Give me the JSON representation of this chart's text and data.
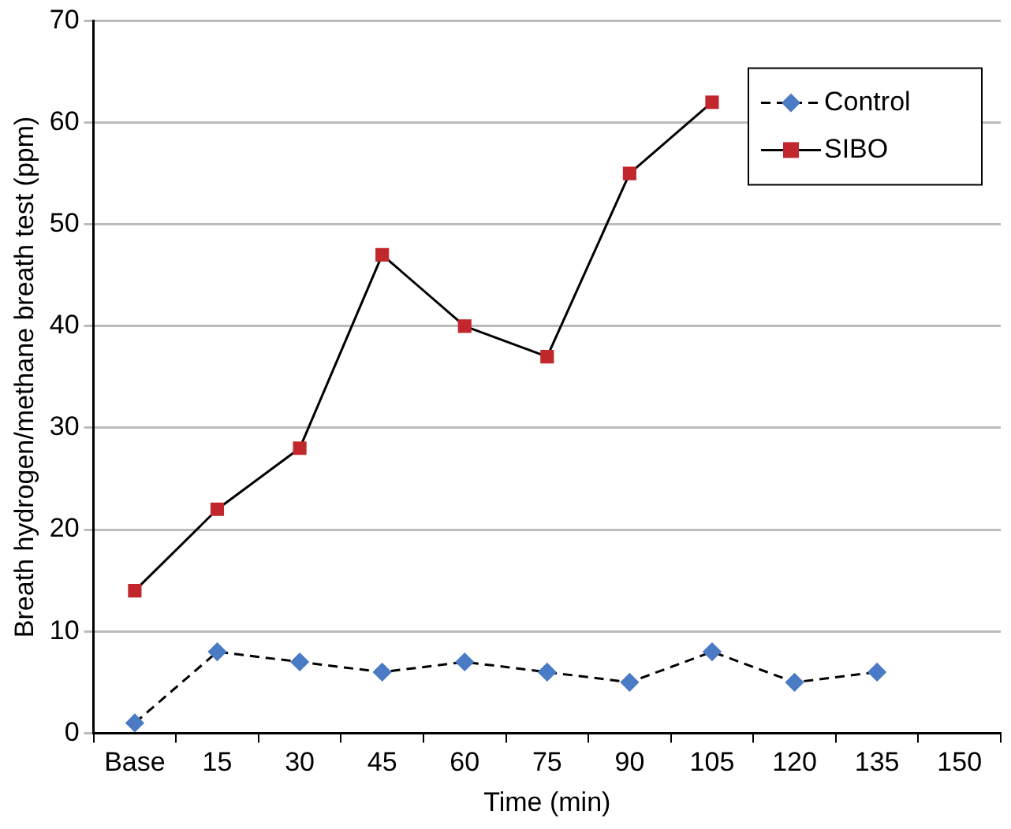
{
  "chart_data": {
    "type": "line",
    "xlabel": "Time (min)",
    "ylabel": "Breath hydrogen/methane breath test (ppm)",
    "categories": [
      "Base",
      "15",
      "30",
      "45",
      "60",
      "75",
      "90",
      "105",
      "120",
      "135",
      "150"
    ],
    "series": [
      {
        "name": "Control",
        "color": "#4a7bc4",
        "marker": "diamond",
        "line_style": "dashed",
        "values": [
          1,
          8,
          7,
          6,
          7,
          6,
          5,
          8,
          5,
          6,
          null
        ]
      },
      {
        "name": "SIBO",
        "color": "#c1272d",
        "marker": "square",
        "line_style": "solid",
        "values": [
          14,
          22,
          28,
          47,
          40,
          37,
          55,
          62,
          null,
          null,
          null
        ]
      }
    ],
    "ylim": [
      0,
      70
    ],
    "yticks": [
      0,
      10,
      20,
      30,
      40,
      50,
      60,
      70
    ],
    "grid": "y",
    "legend": "top right"
  }
}
